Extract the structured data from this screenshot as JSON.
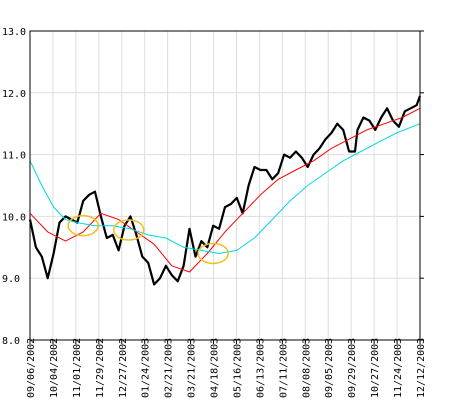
{
  "chart_data": {
    "type": "line",
    "title": "",
    "xlabel": "",
    "ylabel": "",
    "ylim": [
      8.0,
      13.0
    ],
    "yticks": [
      "8.0",
      "9.0",
      "10.0",
      "11.0",
      "12.0",
      "13.0"
    ],
    "grid": true,
    "x_tick_labels": [
      "09/06/2002",
      "10/04/2002",
      "11/01/2002",
      "11/29/2002",
      "12/27/2002",
      "01/24/2003",
      "02/21/2003",
      "03/21/2003",
      "04/18/2003",
      "05/16/2003",
      "06/13/2003",
      "07/11/2003",
      "08/08/2003",
      "09/05/2003",
      "09/29/2003",
      "10/27/2003",
      "11/24/2003",
      "12/12/2003"
    ],
    "x_start": "2002-09-06",
    "x_end": "2003-12-12",
    "series": [
      {
        "color": "#000000",
        "x": [
          "2002-09-06",
          "2002-09-13",
          "2002-09-20",
          "2002-09-27",
          "2002-10-04",
          "2002-10-11",
          "2002-10-18",
          "2002-10-25",
          "2002-11-01",
          "2002-11-08",
          "2002-11-15",
          "2002-11-22",
          "2002-11-29",
          "2002-12-06",
          "2002-12-13",
          "2002-12-20",
          "2002-12-27",
          "2003-01-03",
          "2003-01-10",
          "2003-01-17",
          "2003-01-24",
          "2003-01-31",
          "2003-02-07",
          "2003-02-14",
          "2003-02-21",
          "2003-02-28",
          "2003-03-07",
          "2003-03-14",
          "2003-03-21",
          "2003-03-28",
          "2003-04-04",
          "2003-04-11",
          "2003-04-18",
          "2003-04-25",
          "2003-05-02",
          "2003-05-09",
          "2003-05-16",
          "2003-05-23",
          "2003-05-30",
          "2003-06-06",
          "2003-06-13",
          "2003-06-20",
          "2003-06-27",
          "2003-07-04",
          "2003-07-11",
          "2003-07-18",
          "2003-07-25",
          "2003-08-01",
          "2003-08-08",
          "2003-08-15",
          "2003-08-22",
          "2003-08-29",
          "2003-09-05",
          "2003-09-12",
          "2003-09-19",
          "2003-09-26",
          "2003-09-29",
          "2003-10-06",
          "2003-10-13",
          "2003-10-20",
          "2003-10-27",
          "2003-11-03",
          "2003-11-10",
          "2003-11-17",
          "2003-11-24",
          "2003-12-01",
          "2003-12-08",
          "2003-12-12"
        ],
        "values": [
          9.95,
          9.5,
          9.35,
          9.0,
          9.4,
          9.9,
          10.0,
          9.95,
          9.9,
          10.25,
          10.35,
          10.4,
          10.0,
          9.65,
          9.7,
          9.45,
          9.85,
          10.0,
          9.7,
          9.35,
          9.25,
          8.9,
          9.0,
          9.2,
          9.05,
          8.95,
          9.2,
          9.8,
          9.35,
          9.6,
          9.5,
          9.85,
          9.8,
          10.15,
          10.2,
          10.3,
          10.05,
          10.5,
          10.8,
          10.75,
          10.75,
          10.6,
          10.7,
          11.0,
          10.95,
          11.05,
          10.95,
          10.8,
          11.0,
          11.1,
          11.25,
          11.35,
          11.5,
          11.4,
          11.05,
          11.05,
          11.4,
          11.6,
          11.55,
          11.4,
          11.6,
          11.75,
          11.55,
          11.45,
          11.7,
          11.75,
          11.8,
          11.95
        ]
      },
      {
        "color": "#ff0000",
        "x": [
          "2002-09-06",
          "2002-09-27",
          "2002-10-18",
          "2002-11-08",
          "2002-11-29",
          "2002-12-20",
          "2003-01-10",
          "2003-01-31",
          "2003-02-21",
          "2003-03-14",
          "2003-04-04",
          "2003-04-25",
          "2003-05-16",
          "2003-06-06",
          "2003-06-27",
          "2003-07-18",
          "2003-08-08",
          "2003-08-29",
          "2003-09-19",
          "2003-10-10",
          "2003-10-31",
          "2003-11-21",
          "2003-12-12"
        ],
        "values": [
          10.05,
          9.75,
          9.6,
          9.75,
          10.05,
          9.95,
          9.75,
          9.55,
          9.2,
          9.1,
          9.4,
          9.75,
          10.05,
          10.35,
          10.6,
          10.75,
          10.9,
          11.1,
          11.25,
          11.4,
          11.5,
          11.6,
          11.75
        ]
      },
      {
        "color": "#00d8e0",
        "x": [
          "2002-09-06",
          "2002-09-20",
          "2002-10-04",
          "2002-10-18",
          "2002-11-01",
          "2002-11-22",
          "2002-12-13",
          "2003-01-03",
          "2003-01-24",
          "2003-02-14",
          "2003-03-07",
          "2003-03-28",
          "2003-04-18",
          "2003-05-09",
          "2003-05-30",
          "2003-06-20",
          "2003-07-11",
          "2003-08-01",
          "2003-08-22",
          "2003-09-12",
          "2003-10-03",
          "2003-10-24",
          "2003-11-14",
          "2003-12-12"
        ],
        "values": [
          10.9,
          10.5,
          10.15,
          9.95,
          9.9,
          9.85,
          9.85,
          9.8,
          9.7,
          9.65,
          9.5,
          9.45,
          9.4,
          9.45,
          9.65,
          9.95,
          10.25,
          10.5,
          10.7,
          10.9,
          11.05,
          11.2,
          11.35,
          11.5
        ]
      }
    ],
    "highlights": [
      {
        "x": "2002-11-08",
        "y": 9.85
      },
      {
        "x": "2003-01-01",
        "y": 9.78
      },
      {
        "x": "2003-04-11",
        "y": 9.4
      }
    ],
    "colors": {
      "grid": "#dddddd",
      "axis": "#000000",
      "highlight": "#f0c020"
    }
  }
}
